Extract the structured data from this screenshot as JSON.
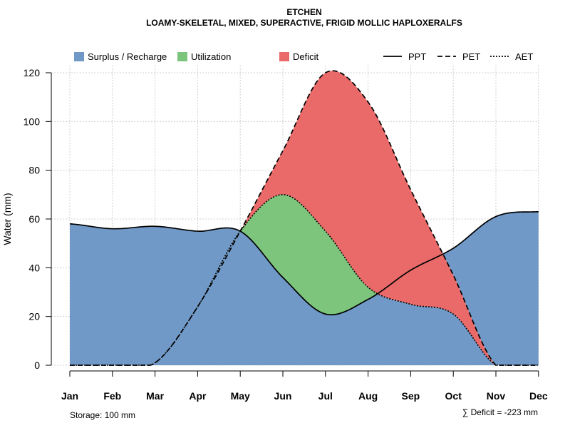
{
  "chart_data": {
    "type": "area",
    "title": "ETCHEN",
    "subtitle": "LOAMY-SKELETAL, MIXED, SUPERACTIVE, FRIGID MOLLIC HAPLOXERALFS",
    "ylabel": "Water (mm)",
    "xlabel": "",
    "ylim": [
      0,
      120
    ],
    "yticks": [
      "0",
      "20",
      "40",
      "60",
      "80",
      "100",
      "120"
    ],
    "categories": [
      "Jan",
      "Feb",
      "Mar",
      "Apr",
      "May",
      "Jun",
      "Jul",
      "Aug",
      "Sep",
      "Oct",
      "Nov",
      "Dec"
    ],
    "series": [
      {
        "name": "PPT",
        "style": "solid",
        "values": [
          58,
          56,
          57,
          55,
          55,
          36,
          21,
          27,
          39,
          48,
          61,
          63
        ]
      },
      {
        "name": "PET",
        "style": "dashed",
        "values": [
          0,
          0,
          1,
          24,
          55,
          88,
          120,
          108,
          72,
          37,
          0,
          0
        ]
      },
      {
        "name": "AET",
        "style": "dotted",
        "values": [
          0,
          0,
          1,
          24,
          55,
          70,
          55,
          32,
          25,
          21,
          0,
          0
        ]
      }
    ],
    "areas": [
      {
        "name": "Surplus / Recharge",
        "color": "#7099C7"
      },
      {
        "name": "Utilization",
        "color": "#7DC47C"
      },
      {
        "name": "Deficit",
        "color": "#EA6A6A"
      }
    ],
    "grid": true,
    "legend_position": "top",
    "storage_note": "Storage: 100 mm",
    "deficit_note": "∑ Deficit = -223 mm"
  }
}
